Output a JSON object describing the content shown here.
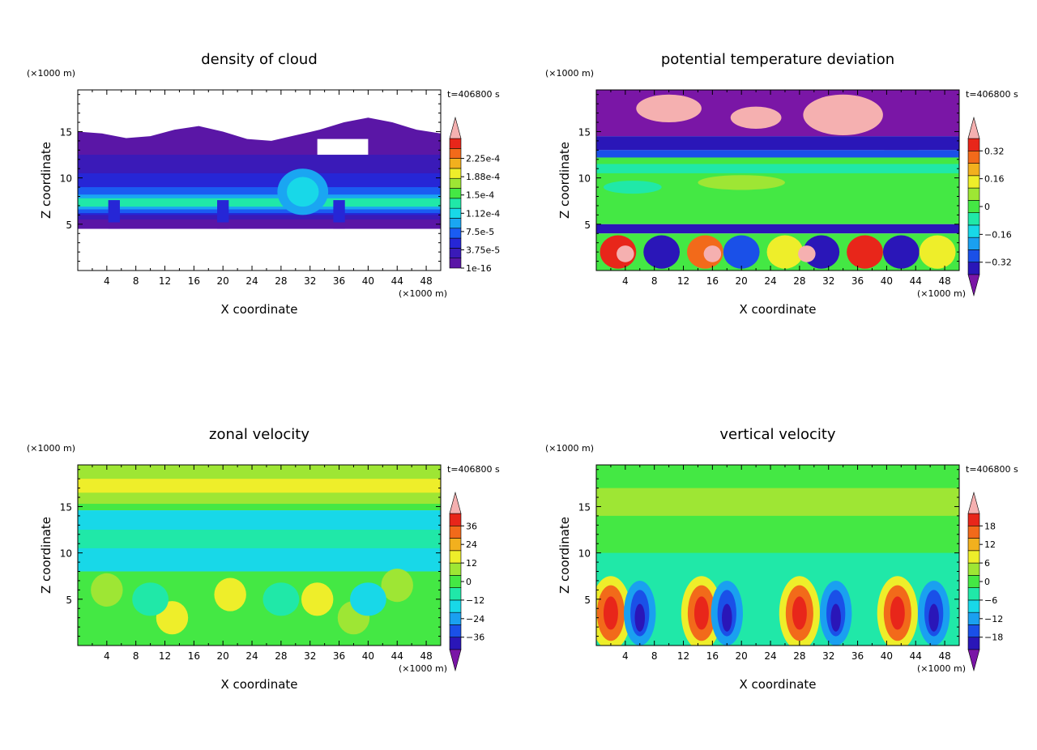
{
  "common": {
    "unit_label": "(×1000 m)",
    "time_label": "t=406800 s",
    "xlabel": "X coordinate",
    "ylabel": "Z coordinate"
  },
  "chart_data": [
    {
      "type": "heatmap",
      "title": "density of cloud",
      "xlabel": "X coordinate",
      "ylabel": "Z coordinate",
      "x_unit": "(×1000 m)",
      "y_unit": "(×1000 m)",
      "annotation": "t=406800 s",
      "xlim": [
        0,
        50
      ],
      "ylim": [
        0,
        19.5
      ],
      "x_ticks": [
        4,
        8,
        12,
        16,
        20,
        24,
        28,
        32,
        36,
        40,
        44,
        48
      ],
      "y_ticks": [
        5,
        10,
        15
      ],
      "colorbar": {
        "tick_labels": [
          "2.25e-4",
          "1.88e-4",
          "1.5e-4",
          "1.12e-4",
          "7.5e-5",
          "3.75e-5",
          "1e-16"
        ],
        "colors": [
          "#5a16a6",
          "#3a1ab8",
          "#2626d6",
          "#1a5cf2",
          "#1aa6f2",
          "#18d8e8",
          "#20e8a8",
          "#44e844",
          "#9ee634",
          "#eeee2a",
          "#f2b01e",
          "#f26a1a",
          "#e8261a",
          "#f5b0b0"
        ],
        "min_arrow": false,
        "max_arrow": true
      },
      "features": {
        "cloud_top_km": [
          15,
          14.8,
          14.3,
          14.5,
          15.2,
          15.6,
          15.0,
          14.2,
          14.0,
          14.6,
          15.2,
          16.0,
          16.5,
          16.0,
          15.2,
          14.8
        ],
        "cloud_base_km": 4.5,
        "dense_layer_km": [
          6,
          9
        ],
        "clear_gap_x": [
          33,
          40
        ],
        "clear_gap_z": [
          12.5,
          14.2
        ]
      }
    },
    {
      "type": "heatmap",
      "title": "potential temperature deviation",
      "xlabel": "X coordinate",
      "ylabel": "Z coordinate",
      "x_unit": "(×1000 m)",
      "y_unit": "(×1000 m)",
      "annotation": "t=406800 s",
      "xlim": [
        0,
        50
      ],
      "ylim": [
        0,
        19.5
      ],
      "x_ticks": [
        4,
        8,
        12,
        16,
        20,
        24,
        28,
        32,
        36,
        40,
        44,
        48
      ],
      "y_ticks": [
        5,
        10,
        15
      ],
      "colorbar": {
        "tick_labels": [
          "0.32",
          "0.16",
          "0",
          "−0.16",
          "−0.32"
        ],
        "colors": [
          "#7a16a6",
          "#2a16b8",
          "#1a50e8",
          "#1aa0f0",
          "#18d8e8",
          "#20e8a8",
          "#44e844",
          "#9ee634",
          "#eeee2a",
          "#f2b01e",
          "#f26a1a",
          "#e8261a",
          "#f5b0b0"
        ],
        "min_arrow": true,
        "max_arrow": true
      },
      "features": {
        "stratosphere_km": [
          14.5,
          19.5
        ],
        "mid_levels_km": [
          5,
          14.5
        ],
        "boundary_layer_km": [
          0,
          4.5
        ]
      }
    },
    {
      "type": "heatmap",
      "title": "zonal velocity",
      "xlabel": "X coordinate",
      "ylabel": "Z coordinate",
      "x_unit": "(×1000 m)",
      "y_unit": "(×1000 m)",
      "annotation": "t=406800 s",
      "xlim": [
        0,
        50
      ],
      "ylim": [
        0,
        19.5
      ],
      "x_ticks": [
        4,
        8,
        12,
        16,
        20,
        24,
        28,
        32,
        36,
        40,
        44,
        48
      ],
      "y_ticks": [
        5,
        10,
        15
      ],
      "colorbar": {
        "tick_labels": [
          "36",
          "24",
          "12",
          "0",
          "−12",
          "−24",
          "−36"
        ],
        "colors": [
          "#7a16a6",
          "#2a16b8",
          "#1a50e8",
          "#1aa0f0",
          "#18d8e8",
          "#20e8a8",
          "#44e844",
          "#9ee634",
          "#eeee2a",
          "#f2b01e",
          "#f26a1a",
          "#e8261a",
          "#f5b0b0"
        ],
        "min_arrow": true,
        "max_arrow": true
      },
      "features": {
        "upper_layer_km": [
          15,
          19.5
        ],
        "jet_shear_km": 15,
        "mid_layer_km": [
          8,
          14.8
        ],
        "lower_layer_km": [
          0,
          8
        ]
      }
    },
    {
      "type": "heatmap",
      "title": "vertical velocity",
      "xlabel": "X coordinate",
      "ylabel": "Z coordinate",
      "x_unit": "(×1000 m)",
      "y_unit": "(×1000 m)",
      "annotation": "t=406800 s",
      "xlim": [
        0,
        50
      ],
      "ylim": [
        0,
        19.5
      ],
      "x_ticks": [
        4,
        8,
        12,
        16,
        20,
        24,
        28,
        32,
        36,
        40,
        44,
        48
      ],
      "y_ticks": [
        5,
        10,
        15
      ],
      "colorbar": {
        "tick_labels": [
          "18",
          "12",
          "6",
          "0",
          "−6",
          "−12",
          "−18"
        ],
        "colors": [
          "#7a16a6",
          "#2a16b8",
          "#1a50e8",
          "#1aa0f0",
          "#18d8e8",
          "#20e8a8",
          "#44e844",
          "#9ee634",
          "#eeee2a",
          "#f2b01e",
          "#f26a1a",
          "#e8261a",
          "#f5b0b0"
        ],
        "min_arrow": true,
        "max_arrow": true
      },
      "features": {
        "updraft_cores_x": [
          2,
          14.5,
          28,
          41.5
        ],
        "downdraft_cores_x": [
          6,
          18,
          33,
          46.5
        ],
        "core_height_km": [
          0,
          8
        ]
      }
    }
  ]
}
